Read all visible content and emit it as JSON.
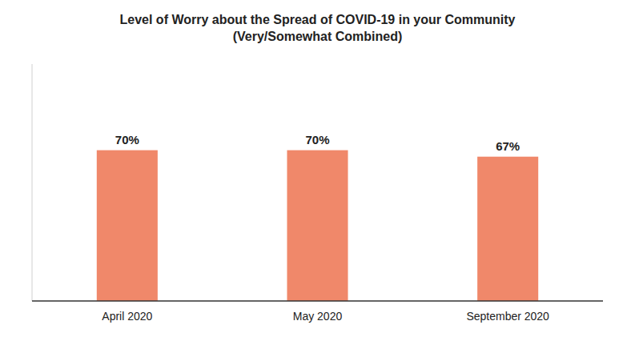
{
  "chart_data": {
    "type": "bar",
    "title": "Level of Worry about the Spread of COVID-19 in your Community",
    "subtitle": "(Very/Somewhat Combined)",
    "categories": [
      "April 2020",
      "May 2020",
      "September 2020"
    ],
    "values": [
      70,
      70,
      67
    ],
    "value_labels": [
      "70%",
      "70%",
      "67%"
    ],
    "color": "#F0886A",
    "ylim": [
      0,
      110
    ],
    "data_labels": true,
    "tick_labels": "x"
  }
}
